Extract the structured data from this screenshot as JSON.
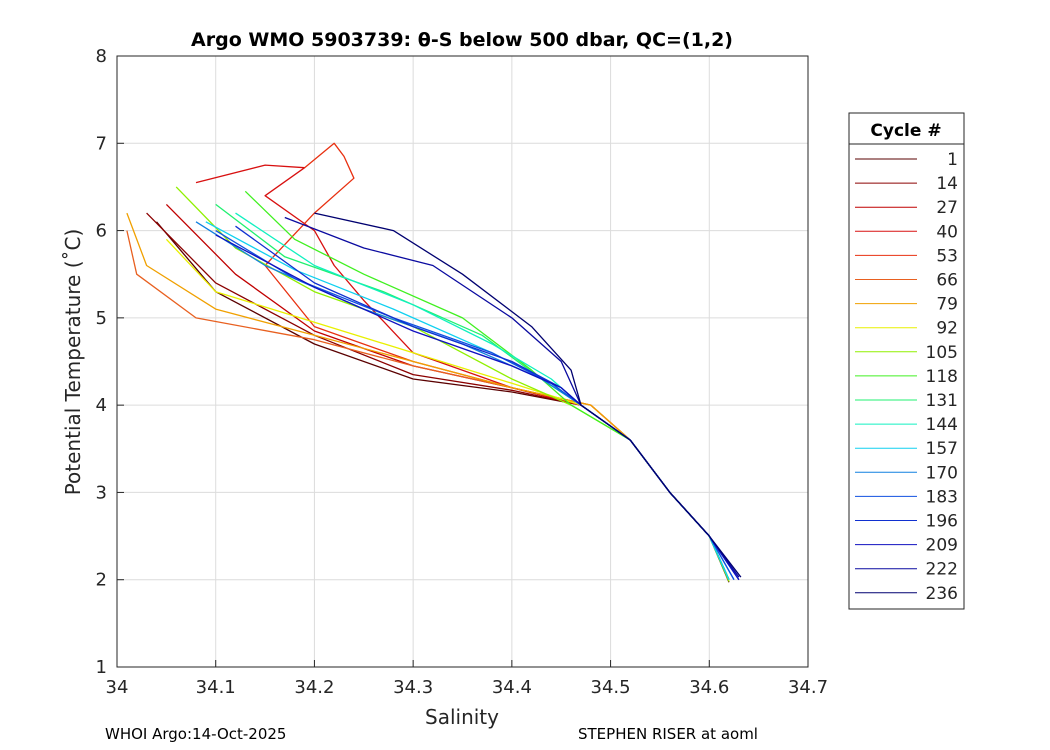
{
  "chart_data": {
    "type": "line",
    "title": "Argo WMO 5903739: θ-S below 500 dbar,  QC=(1,2)",
    "xlabel": "Salinity",
    "ylabel": "Potential Temperature (˚C)",
    "xlim": [
      34,
      34.7
    ],
    "ylim": [
      1,
      8
    ],
    "xticks": [
      "34",
      "34.1",
      "34.2",
      "34.3",
      "34.4",
      "34.5",
      "34.6",
      "34.7"
    ],
    "yticks": [
      "1",
      "2",
      "3",
      "4",
      "5",
      "6",
      "7",
      "8"
    ],
    "grid": true,
    "legend": {
      "title": "Cycle #",
      "placement": "right"
    },
    "series": [
      {
        "name": "1",
        "color": "#5a0000",
        "points": [
          [
            34.04,
            6.1
          ],
          [
            34.1,
            5.3
          ],
          [
            34.2,
            4.7
          ],
          [
            34.3,
            4.3
          ],
          [
            34.4,
            4.15
          ],
          [
            34.47,
            4.0
          ],
          [
            34.52,
            3.6
          ],
          [
            34.56,
            3.0
          ],
          [
            34.6,
            2.5
          ],
          [
            34.62,
            1.97
          ]
        ]
      },
      {
        "name": "14",
        "color": "#8b0000",
        "points": [
          [
            34.03,
            6.2
          ],
          [
            34.1,
            5.4
          ],
          [
            34.2,
            4.8
          ],
          [
            34.3,
            4.35
          ],
          [
            34.4,
            4.17
          ],
          [
            34.47,
            4.0
          ],
          [
            34.52,
            3.6
          ],
          [
            34.56,
            3.0
          ],
          [
            34.6,
            2.5
          ],
          [
            34.62,
            2.0
          ]
        ]
      },
      {
        "name": "27",
        "color": "#c00000",
        "points": [
          [
            34.05,
            6.3
          ],
          [
            34.12,
            5.5
          ],
          [
            34.2,
            4.85
          ],
          [
            34.3,
            4.45
          ],
          [
            34.4,
            4.2
          ],
          [
            34.47,
            4.0
          ],
          [
            34.52,
            3.6
          ],
          [
            34.56,
            3.0
          ],
          [
            34.6,
            2.5
          ],
          [
            34.62,
            2.0
          ]
        ]
      },
      {
        "name": "40",
        "color": "#d81010",
        "points": [
          [
            34.08,
            6.55
          ],
          [
            34.15,
            6.75
          ],
          [
            34.19,
            6.72
          ],
          [
            34.15,
            6.4
          ],
          [
            34.2,
            6.0
          ],
          [
            34.22,
            5.6
          ],
          [
            34.25,
            5.2
          ],
          [
            34.3,
            4.6
          ],
          [
            34.4,
            4.2
          ],
          [
            34.47,
            4.0
          ],
          [
            34.52,
            3.6
          ],
          [
            34.56,
            3.0
          ],
          [
            34.6,
            2.5
          ],
          [
            34.62,
            2.0
          ]
        ]
      },
      {
        "name": "53",
        "color": "#e83010",
        "points": [
          [
            34.19,
            6.72
          ],
          [
            34.22,
            7.0
          ],
          [
            34.23,
            6.85
          ],
          [
            34.24,
            6.6
          ],
          [
            34.2,
            6.2
          ],
          [
            34.15,
            5.6
          ],
          [
            34.2,
            4.9
          ],
          [
            34.3,
            4.5
          ],
          [
            34.4,
            4.2
          ],
          [
            34.48,
            4.0
          ],
          [
            34.52,
            3.6
          ],
          [
            34.56,
            3.0
          ],
          [
            34.6,
            2.5
          ],
          [
            34.62,
            2.0
          ]
        ]
      },
      {
        "name": "66",
        "color": "#e86020",
        "points": [
          [
            34.01,
            6.0
          ],
          [
            34.02,
            5.5
          ],
          [
            34.08,
            5.0
          ],
          [
            34.2,
            4.75
          ],
          [
            34.3,
            4.45
          ],
          [
            34.4,
            4.2
          ],
          [
            34.48,
            4.0
          ],
          [
            34.52,
            3.6
          ],
          [
            34.56,
            3.0
          ],
          [
            34.6,
            2.5
          ],
          [
            34.62,
            2.0
          ]
        ]
      },
      {
        "name": "79",
        "color": "#f0a000",
        "points": [
          [
            34.01,
            6.2
          ],
          [
            34.03,
            5.6
          ],
          [
            34.1,
            5.1
          ],
          [
            34.2,
            4.8
          ],
          [
            34.3,
            4.5
          ],
          [
            34.4,
            4.2
          ],
          [
            34.48,
            4.0
          ],
          [
            34.52,
            3.6
          ],
          [
            34.56,
            3.0
          ],
          [
            34.6,
            2.5
          ],
          [
            34.62,
            2.0
          ]
        ]
      },
      {
        "name": "92",
        "color": "#e8f000",
        "points": [
          [
            34.05,
            5.9
          ],
          [
            34.1,
            5.3
          ],
          [
            34.2,
            4.95
          ],
          [
            34.3,
            4.6
          ],
          [
            34.4,
            4.25
          ],
          [
            34.47,
            4.0
          ],
          [
            34.52,
            3.6
          ],
          [
            34.56,
            3.0
          ],
          [
            34.6,
            2.5
          ],
          [
            34.62,
            2.0
          ]
        ]
      },
      {
        "name": "105",
        "color": "#90f000",
        "points": [
          [
            34.06,
            6.5
          ],
          [
            34.12,
            5.8
          ],
          [
            34.2,
            5.3
          ],
          [
            34.3,
            4.9
          ],
          [
            34.4,
            4.3
          ],
          [
            34.46,
            4.0
          ],
          [
            34.52,
            3.6
          ],
          [
            34.56,
            3.0
          ],
          [
            34.6,
            2.5
          ],
          [
            34.62,
            1.98
          ]
        ]
      },
      {
        "name": "118",
        "color": "#40f020",
        "points": [
          [
            34.13,
            6.45
          ],
          [
            34.18,
            5.9
          ],
          [
            34.25,
            5.5
          ],
          [
            34.35,
            5.0
          ],
          [
            34.42,
            4.4
          ],
          [
            34.46,
            4.0
          ],
          [
            34.52,
            3.6
          ],
          [
            34.56,
            3.0
          ],
          [
            34.6,
            2.5
          ],
          [
            34.62,
            2.0
          ]
        ]
      },
      {
        "name": "131",
        "color": "#20f070",
        "points": [
          [
            34.1,
            6.3
          ],
          [
            34.17,
            5.7
          ],
          [
            34.27,
            5.3
          ],
          [
            34.37,
            4.8
          ],
          [
            34.43,
            4.3
          ],
          [
            34.47,
            4.0
          ],
          [
            34.52,
            3.6
          ],
          [
            34.56,
            3.0
          ],
          [
            34.6,
            2.5
          ],
          [
            34.62,
            2.0
          ]
        ]
      },
      {
        "name": "144",
        "color": "#10f0c0",
        "points": [
          [
            34.12,
            6.2
          ],
          [
            34.2,
            5.6
          ],
          [
            34.3,
            5.15
          ],
          [
            34.38,
            4.7
          ],
          [
            34.44,
            4.3
          ],
          [
            34.47,
            4.0
          ],
          [
            34.52,
            3.6
          ],
          [
            34.56,
            3.0
          ],
          [
            34.6,
            2.5
          ],
          [
            34.62,
            2.0
          ]
        ]
      },
      {
        "name": "157",
        "color": "#10d0f0",
        "points": [
          [
            34.09,
            6.1
          ],
          [
            34.18,
            5.55
          ],
          [
            34.28,
            5.1
          ],
          [
            34.38,
            4.6
          ],
          [
            34.44,
            4.25
          ],
          [
            34.47,
            4.0
          ],
          [
            34.52,
            3.6
          ],
          [
            34.56,
            3.0
          ],
          [
            34.6,
            2.5
          ],
          [
            34.62,
            2.0
          ]
        ]
      },
      {
        "name": "170",
        "color": "#1080e0",
        "points": [
          [
            34.08,
            6.1
          ],
          [
            34.15,
            5.6
          ],
          [
            34.25,
            5.1
          ],
          [
            34.35,
            4.7
          ],
          [
            34.43,
            4.3
          ],
          [
            34.47,
            4.0
          ],
          [
            34.52,
            3.6
          ],
          [
            34.56,
            3.0
          ],
          [
            34.6,
            2.5
          ],
          [
            34.625,
            2.0
          ]
        ]
      },
      {
        "name": "183",
        "color": "#1050e0",
        "points": [
          [
            34.1,
            6.0
          ],
          [
            34.18,
            5.45
          ],
          [
            34.28,
            5.0
          ],
          [
            34.38,
            4.6
          ],
          [
            34.44,
            4.25
          ],
          [
            34.47,
            4.0
          ],
          [
            34.52,
            3.6
          ],
          [
            34.56,
            3.0
          ],
          [
            34.6,
            2.5
          ],
          [
            34.625,
            2.0
          ]
        ]
      },
      {
        "name": "196",
        "color": "#1030d0",
        "points": [
          [
            34.12,
            6.05
          ],
          [
            34.2,
            5.4
          ],
          [
            34.3,
            4.9
          ],
          [
            34.4,
            4.5
          ],
          [
            34.45,
            4.2
          ],
          [
            34.47,
            4.0
          ],
          [
            34.52,
            3.6
          ],
          [
            34.56,
            3.0
          ],
          [
            34.6,
            2.5
          ],
          [
            34.63,
            2.0
          ]
        ]
      },
      {
        "name": "209",
        "color": "#1010c0",
        "points": [
          [
            34.1,
            5.95
          ],
          [
            34.2,
            5.35
          ],
          [
            34.3,
            4.85
          ],
          [
            34.4,
            4.45
          ],
          [
            34.45,
            4.2
          ],
          [
            34.47,
            4.0
          ],
          [
            34.52,
            3.6
          ],
          [
            34.56,
            3.0
          ],
          [
            34.6,
            2.5
          ],
          [
            34.63,
            2.0
          ]
        ]
      },
      {
        "name": "222",
        "color": "#0a0aa0",
        "points": [
          [
            34.17,
            6.15
          ],
          [
            34.25,
            5.8
          ],
          [
            34.32,
            5.6
          ],
          [
            34.4,
            5.0
          ],
          [
            34.45,
            4.5
          ],
          [
            34.47,
            4.0
          ],
          [
            34.52,
            3.6
          ],
          [
            34.56,
            3.0
          ],
          [
            34.6,
            2.5
          ],
          [
            34.63,
            2.03
          ]
        ]
      },
      {
        "name": "236",
        "color": "#000070",
        "points": [
          [
            34.2,
            6.2
          ],
          [
            34.28,
            6.0
          ],
          [
            34.35,
            5.5
          ],
          [
            34.42,
            4.9
          ],
          [
            34.46,
            4.4
          ],
          [
            34.47,
            4.0
          ],
          [
            34.52,
            3.6
          ],
          [
            34.56,
            3.0
          ],
          [
            34.6,
            2.5
          ],
          [
            34.632,
            2.03
          ]
        ]
      }
    ]
  },
  "footer": {
    "left": "WHOI Argo:14-Oct-2025",
    "right": "STEPHEN RISER at aoml"
  }
}
